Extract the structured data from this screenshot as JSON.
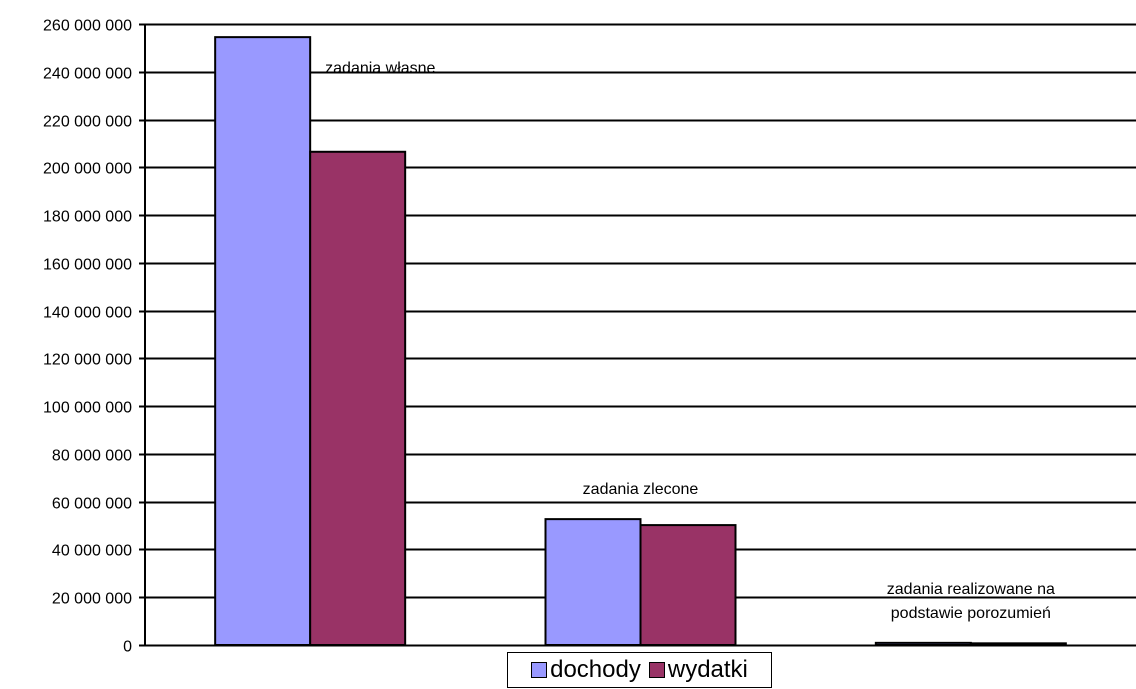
{
  "chart_data": {
    "type": "bar",
    "categories": [
      "zadania własne",
      "zadania zlecone",
      "zadania realizowane na podstawie porozumień"
    ],
    "category_label_lines": [
      [
        "zadania własne"
      ],
      [
        "zadania zlecone"
      ],
      [
        "zadania realizowane na",
        "podstawie porozumień"
      ]
    ],
    "series": [
      {
        "name": "dochody",
        "color": "#9999ff",
        "values": [
          254500000,
          52700000,
          900000
        ]
      },
      {
        "name": "wydatki",
        "color": "#993366",
        "values": [
          206500000,
          50200000,
          700000
        ]
      }
    ],
    "title": "",
    "xlabel": "",
    "ylabel": "",
    "ylim": [
      0,
      260000000
    ],
    "yticks": [
      0,
      20000000,
      40000000,
      60000000,
      80000000,
      100000000,
      120000000,
      140000000,
      160000000,
      180000000,
      200000000,
      220000000,
      240000000,
      260000000
    ],
    "ytick_labels": [
      "0",
      "20 000 000",
      "40 000 000",
      "60 000 000",
      "80 000 000",
      "100 000 000",
      "120 000 000",
      "140 000 000",
      "160 000 000",
      "180 000 000",
      "200 000 000",
      "220 000 000",
      "240 000 000",
      "260 000 000"
    ],
    "grid": true,
    "legend_position": "bottom-center"
  }
}
